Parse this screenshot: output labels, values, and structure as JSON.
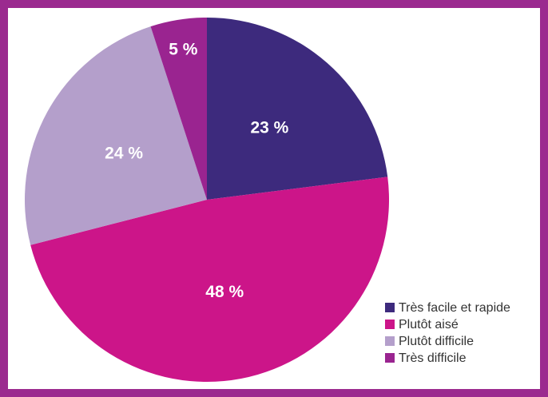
{
  "chart_data": {
    "type": "pie",
    "categories": [
      "Très facile et rapide",
      "Plutôt aisé",
      "Plutôt difficile",
      "Très difficile"
    ],
    "values": [
      23,
      48,
      24,
      5
    ],
    "value_labels": [
      "23 %",
      "48 %",
      "24 %",
      "5 %"
    ],
    "colors": [
      "#3d2a7d",
      "#cc1589",
      "#b49fcb",
      "#9a2490"
    ],
    "legend": "bottom-right"
  }
}
